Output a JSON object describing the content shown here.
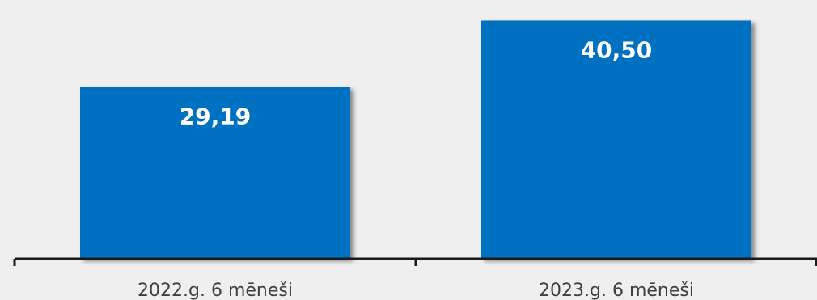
{
  "chart_data": {
    "type": "bar",
    "categories": [
      "2022.g. 6 mēneši",
      "2023.g. 6 mēneši"
    ],
    "values": [
      29.19,
      40.5
    ],
    "data_labels": [
      "29,19",
      "40,50"
    ],
    "title": "",
    "xlabel": "",
    "ylabel": "",
    "ylim": [
      0,
      44
    ],
    "grid": false,
    "legend": "none",
    "colors": {
      "bar": "#0070c0",
      "label": "#ffffff",
      "axis": "#1a1a1a",
      "tick_text": "#404040",
      "background": "#efefef"
    }
  }
}
